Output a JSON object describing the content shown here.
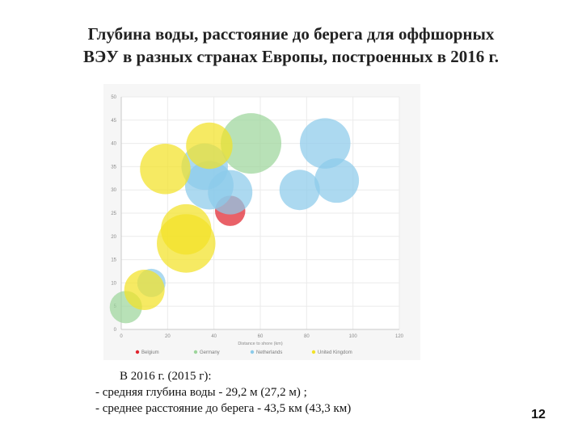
{
  "slide": {
    "title_line1": "Глубина воды, расстояние до берега для оффшорных",
    "title_line2": "ВЭУ в разных странах Европы, построенных в 2016 г.",
    "notes": [
      "В 2016 г. (2015 г):",
      "-  средняя глубина воды  -   29,2  м (27,2 м) ;",
      "- среднее  расстояние до берега - 43,5 км  (43,3 км)"
    ],
    "page_number": "12"
  },
  "chart_data": {
    "type": "bubble",
    "title": "",
    "xlabel": "Distance to shore (km)",
    "ylabel": "",
    "xlim": [
      0,
      120
    ],
    "ylim": [
      0,
      50
    ],
    "x_ticks": [
      "0",
      "20",
      "40",
      "60",
      "80",
      "100",
      "120"
    ],
    "y_ticks": [
      "0",
      "5",
      "10",
      "15",
      "20",
      "25",
      "30",
      "35",
      "40",
      "45",
      "50"
    ],
    "grid": true,
    "legend_position": "bottom",
    "series": [
      {
        "name": "Belgium",
        "color": "#e0242e",
        "points": [
          {
            "x": 47,
            "y": 25.5,
            "size": 0.75
          }
        ]
      },
      {
        "name": "Germany",
        "color": "#9dd59b",
        "points": [
          {
            "x": 56,
            "y": 40,
            "size": 1.5
          },
          {
            "x": 2,
            "y": 4.8,
            "size": 0.8
          }
        ]
      },
      {
        "name": "Netherlands",
        "color": "#8ccbea",
        "points": [
          {
            "x": 38,
            "y": 31,
            "size": 1.2
          },
          {
            "x": 47,
            "y": 29.5,
            "size": 1.1
          },
          {
            "x": 36,
            "y": 35,
            "size": 1.15
          },
          {
            "x": 88,
            "y": 40,
            "size": 1.25
          },
          {
            "x": 77,
            "y": 30,
            "size": 1.0
          },
          {
            "x": 93,
            "y": 32,
            "size": 1.1
          },
          {
            "x": 13,
            "y": 10,
            "size": 0.7
          }
        ]
      },
      {
        "name": "United Kingdom",
        "color": "#f2e227",
        "points": [
          {
            "x": 19,
            "y": 34.5,
            "size": 1.25
          },
          {
            "x": 38,
            "y": 39.5,
            "size": 1.15
          },
          {
            "x": 28,
            "y": 21.5,
            "size": 1.25
          },
          {
            "x": 28,
            "y": 18.5,
            "size": 1.45
          },
          {
            "x": 10,
            "y": 8.5,
            "size": 1.0
          }
        ]
      }
    ]
  }
}
